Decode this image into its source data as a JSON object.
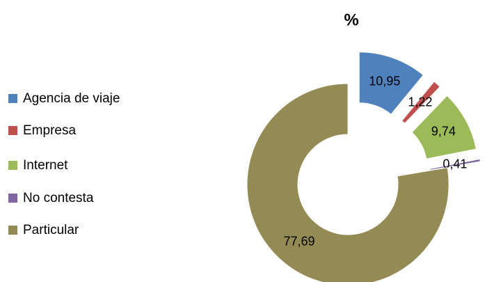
{
  "chart_data": {
    "type": "doughnut",
    "subtitle": "%",
    "categories": [
      "Agencia de viaje",
      "Empresa",
      "Internet",
      "No contesta",
      "Particular"
    ],
    "values": [
      10.95,
      1.22,
      9.74,
      0.41,
      77.69
    ],
    "value_labels": [
      "10,95",
      "1,22",
      "9,74",
      "0,41",
      "77,69"
    ],
    "colors": [
      "#4f81bd",
      "#c0504d",
      "#9bbb59",
      "#8064a2",
      "#948a54"
    ],
    "exploded": [
      true,
      true,
      true,
      true,
      false
    ],
    "legend": "left"
  }
}
